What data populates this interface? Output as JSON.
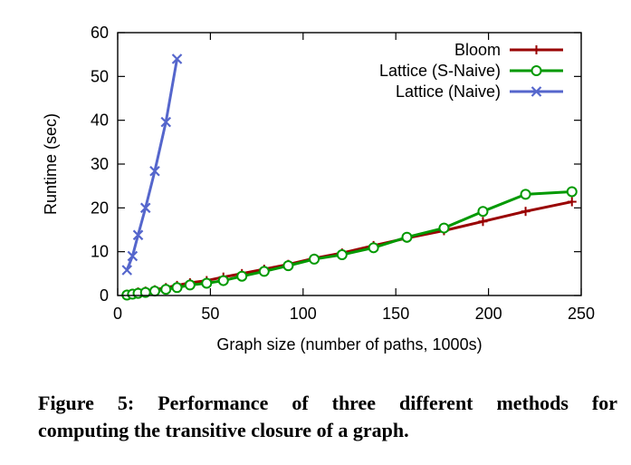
{
  "chart_data": {
    "type": "line",
    "xlabel": "Graph size (number of paths, 1000s)",
    "ylabel": "Runtime (sec)",
    "xlim": [
      0,
      250
    ],
    "ylim": [
      0,
      60
    ],
    "x_ticks": [
      "0",
      "50",
      "100",
      "150",
      "200",
      "250"
    ],
    "y_ticks": [
      "0",
      "10",
      "20",
      "30",
      "40",
      "50",
      "60"
    ],
    "grid": false,
    "legend_position": "top-right",
    "series": [
      {
        "name": "Bloom",
        "color": "#990000",
        "marker": "plus",
        "points": [
          [
            5,
            0.3
          ],
          [
            8,
            0.5
          ],
          [
            11,
            0.8
          ],
          [
            15,
            1.0
          ],
          [
            20,
            1.3
          ],
          [
            26,
            1.8
          ],
          [
            32,
            2.3
          ],
          [
            39,
            2.9
          ],
          [
            48,
            3.4
          ],
          [
            57,
            4.2
          ],
          [
            67,
            5.0
          ],
          [
            79,
            6.0
          ],
          [
            92,
            7.1
          ],
          [
            106,
            8.5
          ],
          [
            121,
            9.7
          ],
          [
            138,
            11.4
          ],
          [
            156,
            13.1
          ],
          [
            176,
            14.8
          ],
          [
            197,
            16.9
          ],
          [
            220,
            19.2
          ],
          [
            245,
            21.4
          ]
        ]
      },
      {
        "name": "Lattice (S-Naive)",
        "color": "#009900",
        "marker": "circle",
        "points": [
          [
            5,
            0.1
          ],
          [
            8,
            0.3
          ],
          [
            11,
            0.5
          ],
          [
            15,
            0.7
          ],
          [
            20,
            1.0
          ],
          [
            26,
            1.4
          ],
          [
            32,
            1.8
          ],
          [
            39,
            2.4
          ],
          [
            48,
            2.8
          ],
          [
            57,
            3.4
          ],
          [
            67,
            4.4
          ],
          [
            79,
            5.5
          ],
          [
            92,
            6.8
          ],
          [
            106,
            8.3
          ],
          [
            121,
            9.3
          ],
          [
            138,
            10.9
          ],
          [
            156,
            13.3
          ],
          [
            176,
            15.4
          ],
          [
            197,
            19.2
          ],
          [
            220,
            23.1
          ],
          [
            245,
            23.7
          ]
        ]
      },
      {
        "name": "Lattice (Naive)",
        "color": "#5566cc",
        "marker": "x",
        "points": [
          [
            5,
            5.8
          ],
          [
            8,
            9.0
          ],
          [
            11,
            13.8
          ],
          [
            15,
            20.0
          ],
          [
            20,
            28.4
          ],
          [
            26,
            39.6
          ],
          [
            32,
            54.0
          ]
        ]
      }
    ]
  },
  "caption": {
    "line1": "Figure 5: Performance of three different methods for",
    "line2": "computing the transitive closure of a graph."
  }
}
